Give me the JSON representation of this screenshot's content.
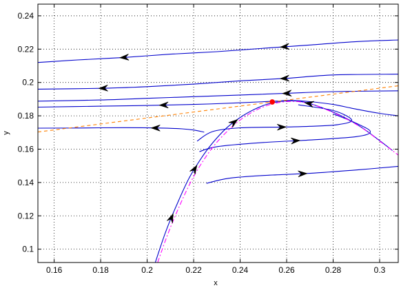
{
  "chart_data": {
    "type": "line",
    "title": "",
    "xlabel": "x",
    "ylabel": "y",
    "xlim": [
      0.153,
      0.308
    ],
    "ylim": [
      0.092,
      0.247
    ],
    "grid": true,
    "x_ticks": [
      "0.16",
      "0.18",
      "0.2",
      "0.22",
      "0.24",
      "0.26",
      "0.28",
      "0.3"
    ],
    "y_ticks": [
      "0.1",
      "0.12",
      "0.14",
      "0.16",
      "0.18",
      "0.2",
      "0.22",
      "0.24"
    ],
    "x_tick_values": [
      0.16,
      0.18,
      0.2,
      0.22,
      0.24,
      0.26,
      0.28,
      0.3
    ],
    "y_tick_values": [
      0.1,
      0.12,
      0.14,
      0.16,
      0.18,
      0.2,
      0.22,
      0.24
    ],
    "colors": {
      "trajectory": "#0000cc",
      "nullcline_curve": "#ff00ff",
      "nullcline_line": "#ff8000",
      "equilibrium": "#ff0000",
      "arrow": "#000000"
    },
    "series": [
      {
        "role": "trajectory",
        "arrows": [
          {
            "at": 0.259,
            "dir": "left"
          },
          {
            "at": 0.19,
            "dir": "left"
          }
        ],
        "x": [
          0.308,
          0.29,
          0.27,
          0.25,
          0.23,
          0.21,
          0.19,
          0.17,
          0.153
        ],
        "y": [
          0.2255,
          0.2245,
          0.2225,
          0.2205,
          0.2185,
          0.217,
          0.215,
          0.2135,
          0.212
        ]
      },
      {
        "role": "trajectory",
        "arrows": [
          {
            "at": 0.259,
            "dir": "left"
          },
          {
            "at": 0.181,
            "dir": "left"
          }
        ],
        "x": [
          0.308,
          0.28,
          0.26,
          0.24,
          0.22,
          0.2,
          0.18,
          0.153
        ],
        "y": [
          0.205,
          0.2045,
          0.2025,
          0.201,
          0.199,
          0.1975,
          0.1965,
          0.196
        ]
      },
      {
        "role": "trajectory",
        "arrows": [
          {
            "at": 0.26,
            "dir": "left"
          }
        ],
        "x": [
          0.308,
          0.28,
          0.26,
          0.24,
          0.22,
          0.2,
          0.18,
          0.153
        ],
        "y": [
          0.195,
          0.1945,
          0.1935,
          0.1925,
          0.1915,
          0.1905,
          0.1895,
          0.1888
        ]
      },
      {
        "role": "trajectory",
        "arrows": [
          {
            "at": 0.207,
            "dir": "left"
          }
        ],
        "x": [
          0.308,
          0.3,
          0.29,
          0.28,
          0.27,
          0.262,
          0.255,
          0.24,
          0.22,
          0.2,
          0.18,
          0.153
        ],
        "y": [
          0.18,
          0.1815,
          0.184,
          0.1868,
          0.1885,
          0.1892,
          0.1888,
          0.1878,
          0.1868,
          0.1862,
          0.1858,
          0.1852
        ]
      },
      {
        "role": "trajectory",
        "arrows": [
          {
            "at": 0.2035,
            "dir": "left"
          }
        ],
        "x": [
          0.153,
          0.17,
          0.19,
          0.205,
          0.215,
          0.22,
          0.2245
        ],
        "y": [
          0.1726,
          0.1727,
          0.1729,
          0.1727,
          0.1722,
          0.1715,
          0.1702
        ]
      },
      {
        "role": "trajectory",
        "arrows": [
          {
            "at": 0.258,
            "dir": "right"
          }
        ],
        "x": [
          0.2215,
          0.228,
          0.24,
          0.26,
          0.27,
          0.282,
          0.288,
          0.28,
          0.265
        ],
        "y": [
          0.1648,
          0.1705,
          0.1728,
          0.1733,
          0.1737,
          0.1747,
          0.1775,
          0.1832,
          0.1866
        ]
      },
      {
        "role": "trajectory",
        "arrows": [
          {
            "at": 0.264,
            "dir": "right"
          }
        ],
        "x": [
          0.2225,
          0.23,
          0.25,
          0.27,
          0.29,
          0.296,
          0.29,
          0.28
        ],
        "y": [
          0.1585,
          0.1615,
          0.164,
          0.1655,
          0.1675,
          0.1705,
          0.1755,
          0.1812
        ]
      },
      {
        "role": "trajectory",
        "arrows": [
          {
            "at": 0.267,
            "dir": "right"
          }
        ],
        "x": [
          0.2255,
          0.235,
          0.25,
          0.27,
          0.29,
          0.308
        ],
        "y": [
          0.1395,
          0.1425,
          0.1442,
          0.1455,
          0.1475,
          0.1497
        ]
      },
      {
        "role": "separatrix",
        "arrows": [
          {
            "at": 0.2105,
            "dir": "up"
          },
          {
            "at": 0.2205,
            "dir": "up"
          },
          {
            "at": 0.2375,
            "dir": "up"
          },
          {
            "at": 0.2695,
            "dir": "left"
          }
        ],
        "x": [
          0.2035,
          0.208,
          0.213,
          0.218,
          0.223,
          0.228,
          0.234,
          0.24,
          0.246,
          0.252,
          0.258,
          0.264,
          0.27,
          0.278,
          0.286,
          0.293,
          0.3,
          0.3055
        ],
        "y": [
          0.092,
          0.1105,
          0.1275,
          0.1425,
          0.154,
          0.1635,
          0.1725,
          0.179,
          0.1838,
          0.1871,
          0.1887,
          0.1889,
          0.1873,
          0.1834,
          0.1782,
          0.1723,
          0.1651,
          0.1592
        ]
      },
      {
        "role": "nullcline_curve",
        "style": "dashdot",
        "x": [
          0.2045,
          0.209,
          0.214,
          0.219,
          0.224,
          0.229,
          0.235,
          0.241,
          0.247,
          0.253,
          0.259,
          0.265,
          0.271,
          0.279,
          0.287,
          0.294,
          0.301,
          0.308
        ],
        "y": [
          0.092,
          0.1095,
          0.1262,
          0.141,
          0.1528,
          0.1625,
          0.1715,
          0.1785,
          0.1835,
          0.1868,
          0.1884,
          0.1885,
          0.1868,
          0.1826,
          0.1772,
          0.1712,
          0.1638,
          0.1565
        ]
      },
      {
        "role": "nullcline_line",
        "style": "dashed",
        "x": [
          0.153,
          0.308
        ],
        "y": [
          0.1703,
          0.198
        ]
      }
    ],
    "equilibrium": {
      "x": 0.2538,
      "y": 0.1883
    }
  }
}
